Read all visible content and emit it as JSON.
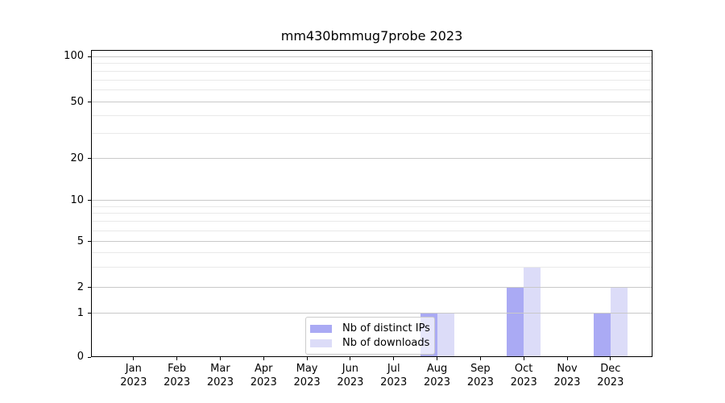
{
  "figure": {
    "background": "#ffffff"
  },
  "chart_data": {
    "type": "bar",
    "title": "mm430bmmug7probe 2023",
    "categories": [
      "Jan\n2023",
      "Feb\n2023",
      "Mar\n2023",
      "Apr\n2023",
      "May\n2023",
      "Jun\n2023",
      "Jul\n2023",
      "Aug\n2023",
      "Sep\n2023",
      "Oct\n2023",
      "Nov\n2023",
      "Dec\n2023"
    ],
    "series": [
      {
        "name": "Nb of distinct IPs",
        "color": "#aaaaf4",
        "values": [
          0,
          0,
          0,
          0,
          0,
          0,
          0,
          1,
          0,
          2,
          0,
          1
        ]
      },
      {
        "name": "Nb of downloads",
        "color": "#dcdcf8",
        "values": [
          0,
          0,
          0,
          0,
          0,
          0,
          0,
          1,
          0,
          3,
          0,
          2
        ]
      }
    ],
    "xlabel": "",
    "ylabel": "",
    "yscale": "symlog",
    "yticks": [
      0,
      1,
      2,
      5,
      10,
      20,
      50,
      100
    ],
    "yticks_minor": [
      3,
      4,
      6,
      7,
      8,
      9,
      30,
      40,
      60,
      70,
      80,
      90
    ],
    "ylim": [
      0,
      112
    ],
    "grid": true,
    "legend_position": "lower center",
    "colors": {
      "major_grid": "#c9c9c9",
      "minor_grid": "#e9e9e9",
      "axis": "#000000",
      "legend_border": "#cccccc"
    }
  }
}
